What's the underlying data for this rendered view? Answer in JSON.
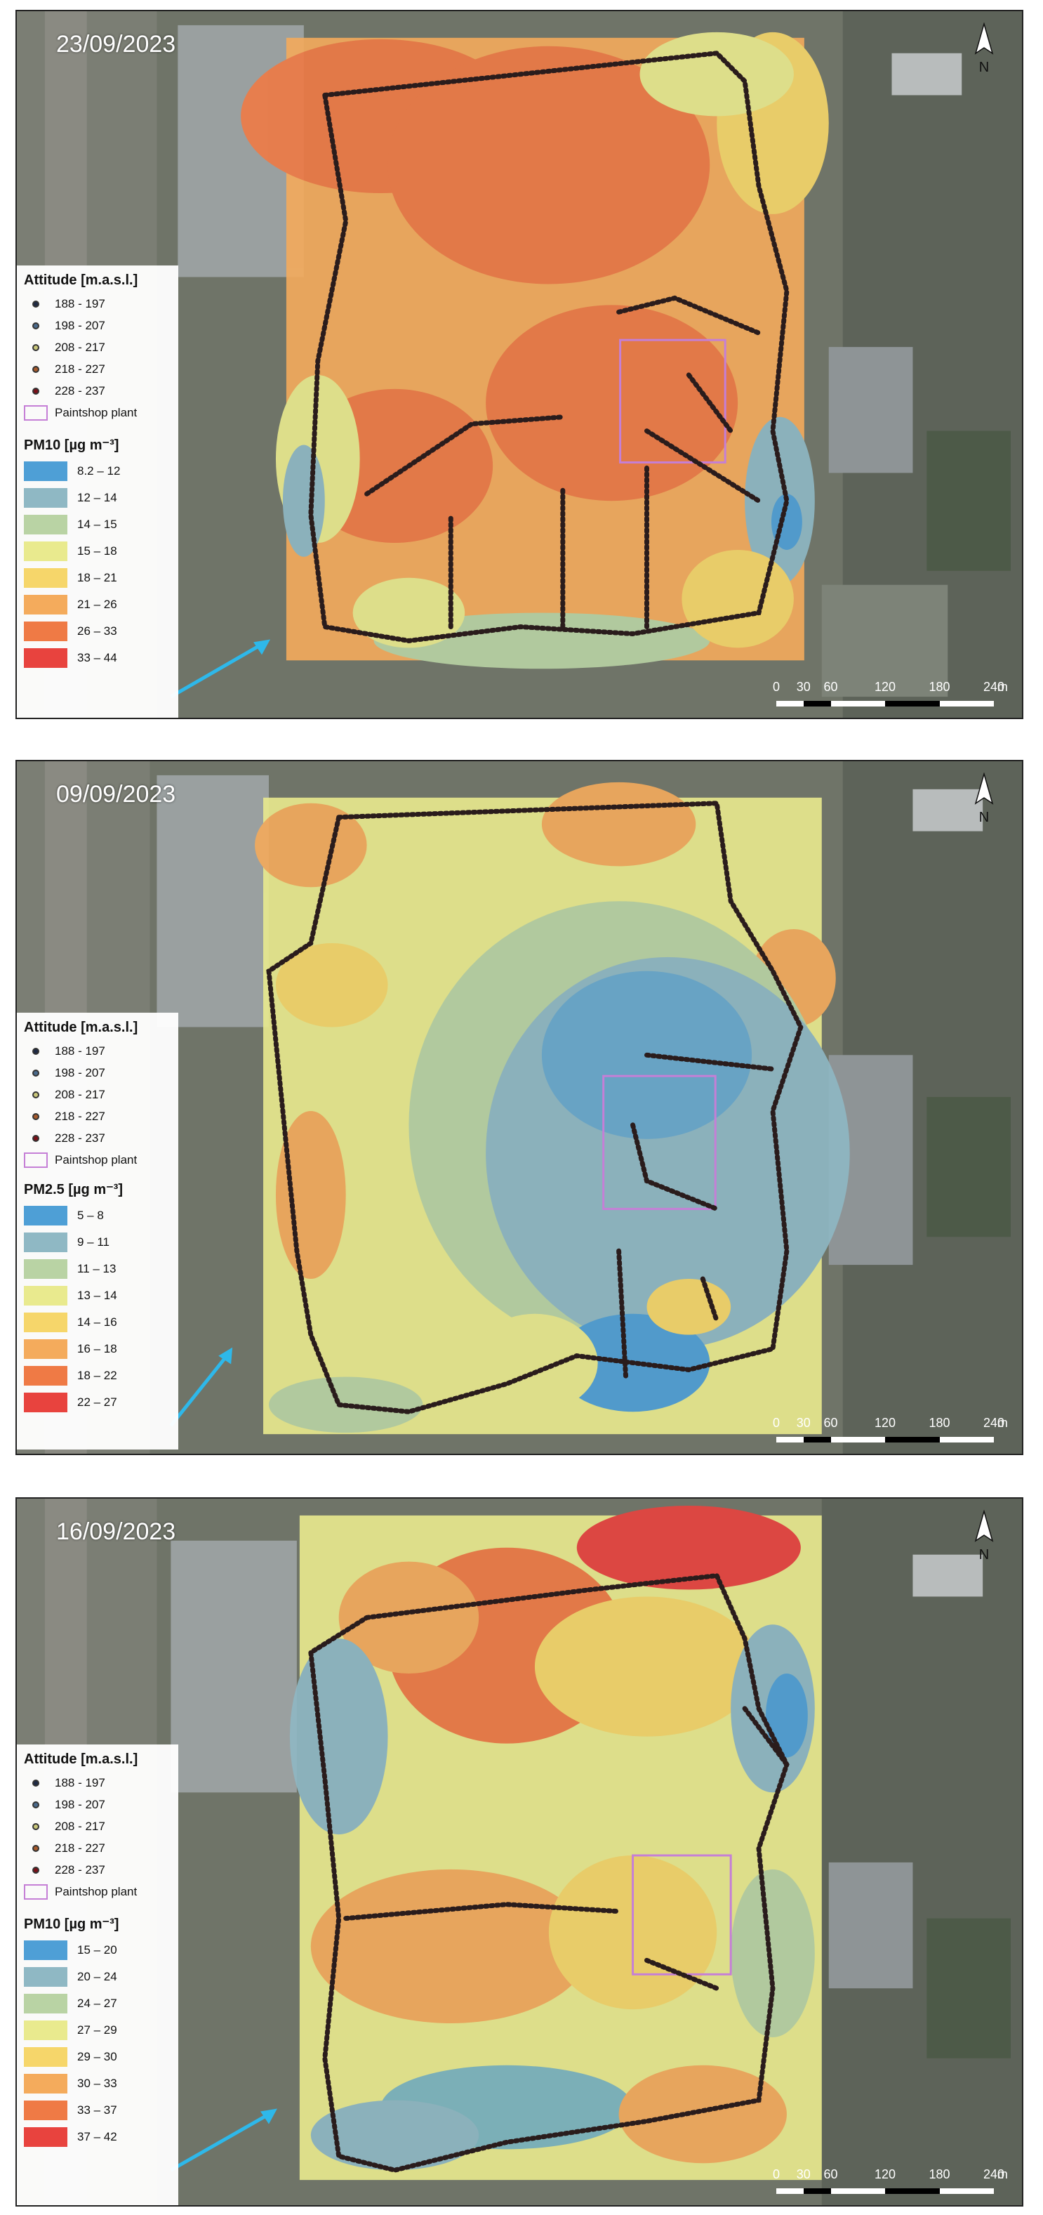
{
  "panels": [
    {
      "date": "23/09/2023",
      "altitude_title": "Attitude [m.a.s.l.]",
      "altitude_classes": [
        {
          "label": "188 - 197",
          "color": "#1f2a44"
        },
        {
          "label": "198 - 207",
          "color": "#4a6a8c"
        },
        {
          "label": "208 - 217",
          "color": "#c9c77a"
        },
        {
          "label": "218 - 227",
          "color": "#a65a2c"
        },
        {
          "label": "228 - 237",
          "color": "#7a1018"
        }
      ],
      "plant_label": "Paintshop plant",
      "pm_title": "PM10 [µg m⁻³]",
      "pm_classes": [
        {
          "label": "8.2 – 12",
          "color": "#4e9fd6"
        },
        {
          "label": "12 – 14",
          "color": "#8fb8c4"
        },
        {
          "label": "14 – 15",
          "color": "#b9d3a4"
        },
        {
          "label": "15 – 18",
          "color": "#e9ea8e"
        },
        {
          "label": "18 – 21",
          "color": "#f6d66a"
        },
        {
          "label": "21 – 26",
          "color": "#f4ab5c"
        },
        {
          "label": "26 – 33",
          "color": "#ef7a45"
        },
        {
          "label": "33 – 44",
          "color": "#e8433e"
        }
      ],
      "scale_labels": [
        "0",
        "30",
        "60",
        "120",
        "180",
        "240"
      ],
      "scale_unit": "m",
      "north_label": "N"
    },
    {
      "date": "09/09/2023",
      "altitude_title": "Attitude [m.a.s.l.]",
      "altitude_classes": [
        {
          "label": "188 - 197",
          "color": "#1f2a44"
        },
        {
          "label": "198 - 207",
          "color": "#4a6a8c"
        },
        {
          "label": "208 - 217",
          "color": "#c9c77a"
        },
        {
          "label": "218 - 227",
          "color": "#a65a2c"
        },
        {
          "label": "228 - 237",
          "color": "#7a1018"
        }
      ],
      "plant_label": "Paintshop plant",
      "pm_title": "PM2.5 [µg m⁻³]",
      "pm_classes": [
        {
          "label": "5 – 8",
          "color": "#4e9fd6"
        },
        {
          "label": "9 – 11",
          "color": "#8fb8c4"
        },
        {
          "label": "11 – 13",
          "color": "#b9d3a4"
        },
        {
          "label": "13 – 14",
          "color": "#e9ea8e"
        },
        {
          "label": "14 – 16",
          "color": "#f6d66a"
        },
        {
          "label": "16 – 18",
          "color": "#f4ab5c"
        },
        {
          "label": "18 – 22",
          "color": "#ef7a45"
        },
        {
          "label": "22 – 27",
          "color": "#e8433e"
        }
      ],
      "scale_labels": [
        "0",
        "30",
        "60",
        "120",
        "180",
        "240"
      ],
      "scale_unit": "m",
      "north_label": "N"
    },
    {
      "date": "16/09/2023",
      "altitude_title": "Attitude [m.a.s.l.]",
      "altitude_classes": [
        {
          "label": "188 - 197",
          "color": "#1f2a44"
        },
        {
          "label": "198 - 207",
          "color": "#4a6a8c"
        },
        {
          "label": "208 - 217",
          "color": "#c9c77a"
        },
        {
          "label": "218 - 227",
          "color": "#a65a2c"
        },
        {
          "label": "228 - 237",
          "color": "#7a1018"
        }
      ],
      "plant_label": "Paintshop plant",
      "pm_title": "PM10 [µg m⁻³]",
      "pm_classes": [
        {
          "label": "15 – 20",
          "color": "#4e9fd6"
        },
        {
          "label": "20 – 24",
          "color": "#8fb8c4"
        },
        {
          "label": "24 – 27",
          "color": "#b9d3a4"
        },
        {
          "label": "27 – 29",
          "color": "#e9ea8e"
        },
        {
          "label": "29 – 30",
          "color": "#f6d66a"
        },
        {
          "label": "30 – 33",
          "color": "#f4ab5c"
        },
        {
          "label": "33 – 37",
          "color": "#ef7a45"
        },
        {
          "label": "37 – 42",
          "color": "#e8433e"
        }
      ],
      "scale_labels": [
        "0",
        "30",
        "60",
        "120",
        "180",
        "240"
      ],
      "scale_unit": "m",
      "north_label": "N"
    }
  ],
  "colors": {
    "wind_arrow": "#2eb8ea",
    "plant_outline": "#c57fd6",
    "satellite_base": "#6f7468"
  }
}
